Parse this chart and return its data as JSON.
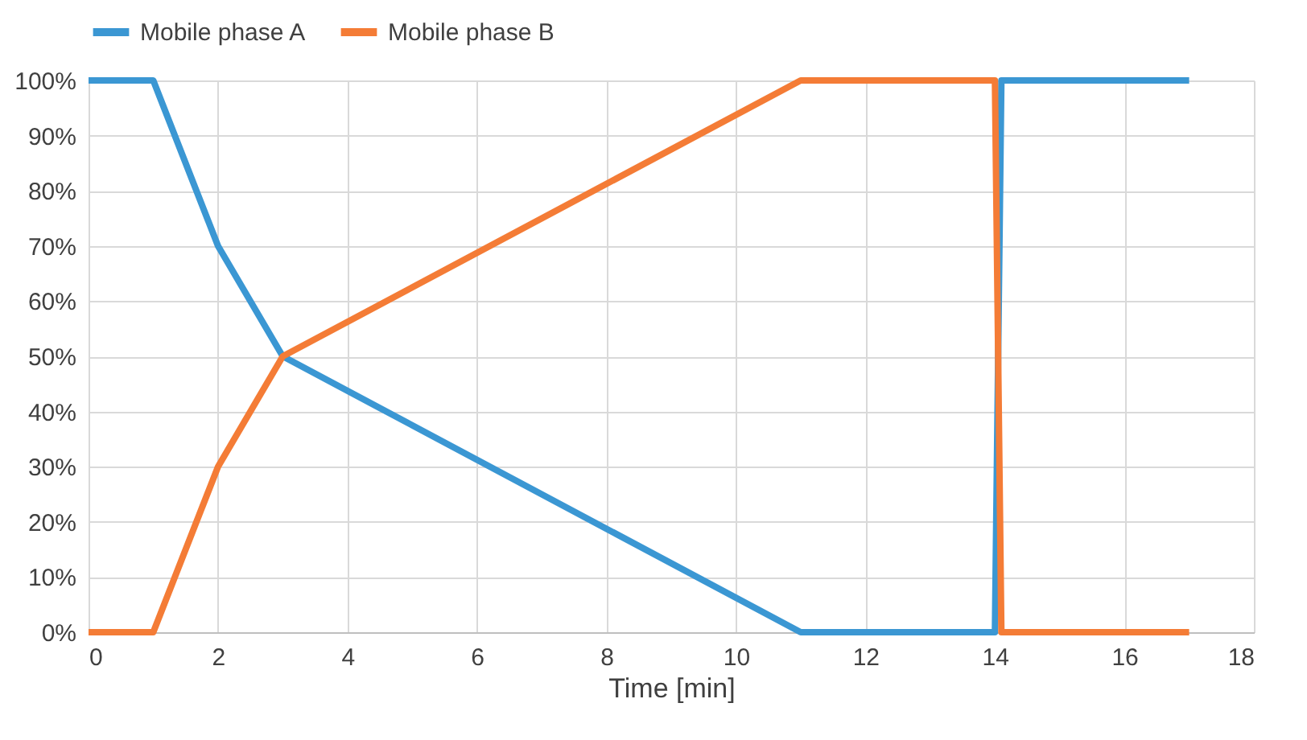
{
  "chart_data": {
    "type": "line",
    "xlabel": "Time [min]",
    "legend": "top",
    "grid": true,
    "line_style": "solid",
    "marker": "none",
    "xlim": [
      0,
      18
    ],
    "xticks": [
      0,
      2,
      4,
      6,
      8,
      10,
      12,
      14,
      16,
      18
    ],
    "ylim": [
      0,
      100
    ],
    "yticks": [
      {
        "value": 0,
        "label": "0%"
      },
      {
        "value": 10,
        "label": "10%"
      },
      {
        "value": 20,
        "label": "20%"
      },
      {
        "value": 30,
        "label": "30%"
      },
      {
        "value": 40,
        "label": "40%"
      },
      {
        "value": 50,
        "label": "50%"
      },
      {
        "value": 60,
        "label": "60%"
      },
      {
        "value": 70,
        "label": "70%"
      },
      {
        "value": 80,
        "label": "80%"
      },
      {
        "value": 90,
        "label": "90%"
      },
      {
        "value": 100,
        "label": "100%"
      }
    ],
    "series": [
      {
        "name": "Mobile phase A",
        "color": "#3b97d3",
        "x": [
          0,
          1,
          2,
          3,
          11,
          14,
          14.1,
          17
        ],
        "values": [
          100,
          100,
          70,
          50,
          0,
          0,
          100,
          100
        ]
      },
      {
        "name": "Mobile phase B",
        "color": "#f47c36",
        "x": [
          0,
          1,
          2,
          3,
          11,
          14,
          14.1,
          17
        ],
        "values": [
          0,
          0,
          30,
          50,
          100,
          100,
          0,
          0
        ]
      }
    ]
  }
}
